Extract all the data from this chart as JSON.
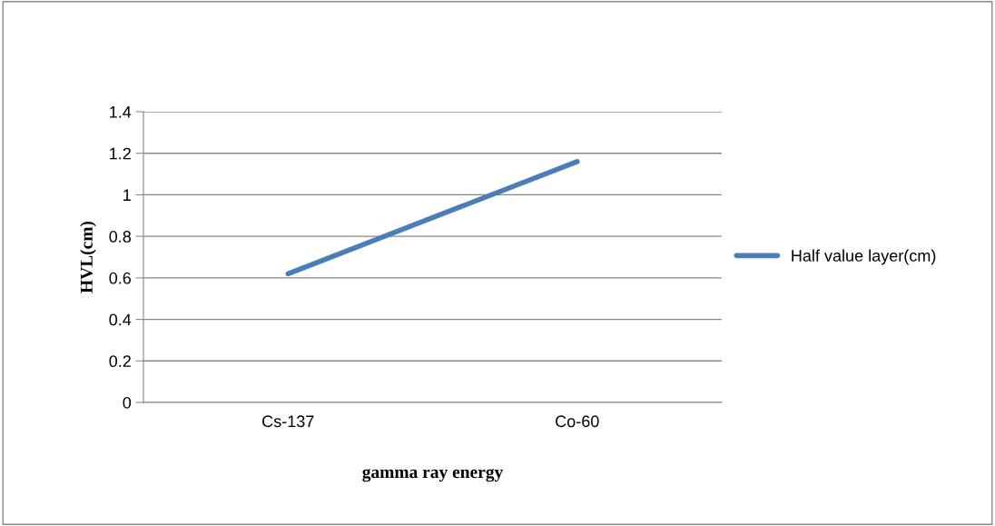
{
  "chart_data": {
    "type": "line",
    "xlabel": "gamma ray energy",
    "ylabel": "HVL(cm)",
    "categories": [
      "Cs-137",
      "Co-60"
    ],
    "series": [
      {
        "name": "Half value layer(cm)",
        "color": "#4a7ebb",
        "values": [
          0.62,
          1.16
        ]
      }
    ],
    "ylim": [
      0,
      1.4
    ],
    "yticks": [
      0,
      0.2,
      0.4,
      0.6,
      0.8,
      1,
      1.2,
      1.4
    ],
    "grid": "y",
    "legend": "right",
    "marker": "none",
    "line_style": "solid"
  }
}
